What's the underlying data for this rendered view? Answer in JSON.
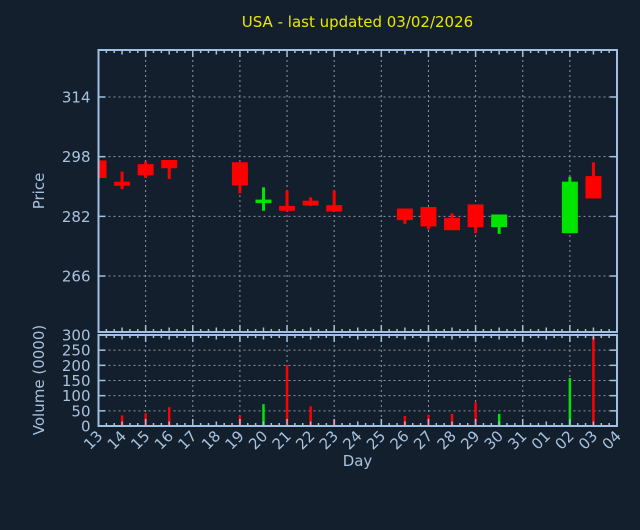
{
  "theme": {
    "background": "#131f2d",
    "axis_color": "#a2c1e2",
    "label_color": "#a8c2de",
    "grid_color": "#8f969f",
    "title_color": "#e9e900",
    "up_color": "#00e400",
    "down_color": "#fe0000"
  },
  "title": {
    "text": "USA - last updated 03/02/2026"
  },
  "axes": {
    "x_label": "Day",
    "price_label": "Price",
    "volume_label": "Volume (0000)"
  },
  "chart_data": [
    {
      "type": "candlestick",
      "title": "USA - last updated 03/02/2026",
      "xlabel": "Day",
      "ylabel": "Price",
      "x_categories": [
        "13",
        "14",
        "15",
        "16",
        "17",
        "18",
        "19",
        "20",
        "21",
        "22",
        "23",
        "24",
        "25",
        "26",
        "27",
        "28",
        "29",
        "30",
        "31",
        "01",
        "02",
        "03",
        "04"
      ],
      "ylim": [
        251,
        326.6
      ],
      "yticks": [
        266,
        282,
        298,
        314
      ],
      "grid": true,
      "legend": false,
      "candles": [
        {
          "date": "13",
          "open": 297.0,
          "high": 297.0,
          "low": 292.3,
          "close": 292.3
        },
        {
          "date": "14",
          "open": 291.3,
          "high": 294.0,
          "low": 289.3,
          "close": 290.2
        },
        {
          "date": "15",
          "open": 296.0,
          "high": 296.7,
          "low": 292.3,
          "close": 293.0
        },
        {
          "date": "16",
          "open": 297.1,
          "high": 297.1,
          "low": 292.0,
          "close": 294.9
        },
        {
          "date": "19",
          "open": 296.5,
          "high": 296.5,
          "low": 288.2,
          "close": 290.3
        },
        {
          "date": "20",
          "open": 286.3,
          "high": 289.8,
          "low": 283.5,
          "close": 286.5
        },
        {
          "date": "21",
          "open": 284.8,
          "high": 288.9,
          "low": 283.5,
          "close": 283.5
        },
        {
          "date": "22",
          "open": 286.2,
          "high": 287.1,
          "low": 284.8,
          "close": 284.9
        },
        {
          "date": "23",
          "open": 285.0,
          "high": 288.9,
          "low": 283.3,
          "close": 283.3
        },
        {
          "date": "26",
          "open": 284.1,
          "high": 284.1,
          "low": 280.0,
          "close": 281.0
        },
        {
          "date": "27",
          "open": 284.5,
          "high": 284.5,
          "low": 278.5,
          "close": 279.3
        },
        {
          "date": "28",
          "open": 281.6,
          "high": 282.8,
          "low": 278.3,
          "close": 278.3
        },
        {
          "date": "29",
          "open": 285.2,
          "high": 285.2,
          "low": 277.5,
          "close": 279.1
        },
        {
          "date": "30",
          "open": 279.1,
          "high": 282.5,
          "low": 277.3,
          "close": 282.5
        },
        {
          "date": "02",
          "open": 277.5,
          "high": 292.6,
          "low": 277.5,
          "close": 291.3
        },
        {
          "date": "03",
          "open": 292.8,
          "high": 296.5,
          "low": 286.8,
          "close": 286.8
        }
      ]
    },
    {
      "type": "bar",
      "xlabel": "Day",
      "ylabel": "Volume (0000)",
      "categories": [
        "13",
        "14",
        "15",
        "16",
        "17",
        "18",
        "19",
        "20",
        "21",
        "22",
        "23",
        "24",
        "25",
        "26",
        "27",
        "28",
        "29",
        "30",
        "31",
        "01",
        "02",
        "03",
        "04"
      ],
      "ylim": [
        0,
        300
      ],
      "yticks": [
        0,
        50,
        100,
        150,
        200,
        250,
        300
      ],
      "grid": true,
      "series": [
        {
          "name": "volume",
          "values": [
            null,
            35,
            42,
            62,
            null,
            null,
            33,
            72,
            200,
            65,
            20,
            null,
            null,
            33,
            37,
            40,
            78,
            40,
            null,
            null,
            158,
            295,
            null
          ]
        }
      ],
      "bar_colors": [
        null,
        "down",
        "down",
        "down",
        null,
        null,
        "down",
        "up",
        "down",
        "down",
        "down",
        null,
        null,
        "down",
        "down",
        "down",
        "down",
        "up",
        null,
        null,
        "up",
        "down",
        null
      ]
    }
  ]
}
